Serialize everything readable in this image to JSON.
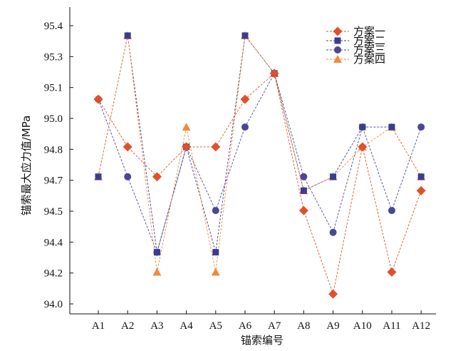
{
  "chart_data": {
    "type": "line",
    "xlabel": "锚索编号",
    "ylabel": "锚索最大应力值/MPa",
    "categories": [
      "A1",
      "A2",
      "A3",
      "A4",
      "A5",
      "A6",
      "A7",
      "A8",
      "A9",
      "A10",
      "A11",
      "A12"
    ],
    "y_ticks": [
      "94.0",
      "94.2",
      "94.4",
      "94.5",
      "94.7",
      "94.8",
      "95.0",
      "95.1",
      "95.3",
      "95.4"
    ],
    "ylim": [
      94.0,
      95.4
    ],
    "grid": false,
    "legend_position": "top-right",
    "series": [
      {
        "name": "方案一",
        "marker": "diamond",
        "color": "#e0502a",
        "values": [
          95.03,
          94.79,
          94.64,
          94.79,
          94.79,
          95.03,
          95.16,
          94.47,
          94.05,
          94.79,
          94.16,
          94.57
        ]
      },
      {
        "name": "方案二",
        "marker": "square",
        "color": "#3a3d8f",
        "values": [
          94.64,
          95.35,
          94.26,
          94.79,
          94.26,
          95.35,
          95.16,
          94.57,
          94.64,
          94.89,
          94.89,
          94.64
        ]
      },
      {
        "name": "方案三",
        "marker": "circle",
        "color": "#4a4794",
        "values": [
          95.03,
          94.64,
          94.26,
          94.79,
          94.47,
          94.89,
          95.16,
          94.64,
          94.36,
          94.89,
          94.47,
          94.89
        ]
      },
      {
        "name": "方案四",
        "marker": "triangle",
        "color": "#f08a3c",
        "values": [
          94.64,
          95.35,
          94.16,
          94.89,
          94.16,
          95.35,
          95.16,
          94.57,
          94.64,
          94.79,
          94.89,
          94.64
        ]
      }
    ]
  }
}
